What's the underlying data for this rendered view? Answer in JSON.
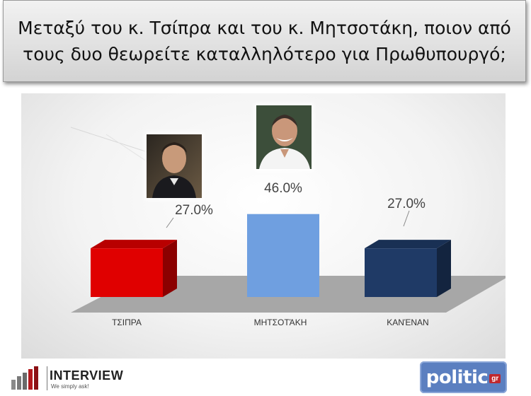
{
  "question": "Μεταξύ του κ. Τσίπρα και του κ. Μητσοτάκη, ποιον από τους δυο θεωρείτε καταλληλότερο για Πρωθυπουργό;",
  "chart_data": {
    "type": "bar",
    "title": "",
    "categories": [
      "ΤΣΙΠΡΑ",
      "ΜΗΤΣΟΤΆΚΗ",
      "ΚΑΝΈΝΑΝ"
    ],
    "values": [
      27.0,
      46.0,
      27.0
    ],
    "value_labels": [
      "27.0%",
      "46.0%",
      "27.0%"
    ],
    "colors": [
      "#e00000",
      "#6f9fe0",
      "#1f3a66"
    ],
    "three_d": true,
    "grid": false,
    "legend": "none"
  },
  "photos": [
    {
      "subject": "Τσίπρας",
      "icon": "portrait-photo"
    },
    {
      "subject": "Μητσοτάκης",
      "icon": "portrait-photo"
    }
  ],
  "logos": {
    "interview_name": "INTERVIEW",
    "interview_tagline": "We simply ask!",
    "politic_name": "politic",
    "politic_suffix": "gr"
  }
}
